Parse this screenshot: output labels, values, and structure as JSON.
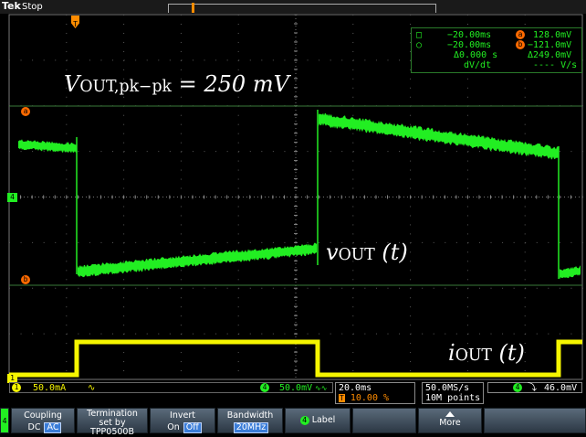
{
  "header": {
    "brand": "Tek",
    "run_state": "Stop"
  },
  "cursors": {
    "t1": "−20.00ms",
    "t2": "−20.00ms",
    "dt": "Δ0.000 s",
    "dvdt": "dV/dt",
    "v1": "128.0mV",
    "v2": "−121.0mV",
    "dv": "Δ249.0mV",
    "dvdt_val": "---- V/s",
    "cursor_a": "a",
    "cursor_b": "b"
  },
  "annotations": {
    "vpp_v": "V",
    "vpp_sub": "OUT,pk−pk",
    "vpp_eq": " = 250 mV",
    "vout_v": "v",
    "vout_sub": "OUT",
    "vout_t": " (t)",
    "iout_i": "i",
    "iout_sub": "OUT",
    "iout_t": " (t)"
  },
  "channels": {
    "ch1": {
      "num": "1",
      "scale": "50.0mA",
      "coupling_sym": "∿",
      "color": "#f5f500"
    },
    "ch4": {
      "num": "4",
      "scale": "50.0mV",
      "coupling_sym": "∿∿",
      "color": "#22ee22"
    }
  },
  "markers": {
    "ch1": "1",
    "ch4": "4",
    "trigger": "T"
  },
  "timebase": {
    "scale": "20.0ms",
    "position": "10.00 %",
    "t_icon": "T"
  },
  "acquisition": {
    "rate": "50.0MS/s",
    "points": "10M points"
  },
  "trigger": {
    "source": "4",
    "slope": "⤵",
    "level": "46.0mV"
  },
  "menu": {
    "ch_tab": "4",
    "coupling_label": "Coupling",
    "coupling_dc": "DC",
    "coupling_ac": "AC",
    "term_label": "Termination",
    "term_line2": "set by",
    "term_line3": "TPP0500B",
    "invert_label": "Invert",
    "invert_on": "On",
    "invert_off": "Off",
    "bw_label": "Bandwidth",
    "bw_value": "20MHz",
    "label_btn": "Label",
    "label_num": "4",
    "more": "More"
  },
  "colors": {
    "green": "#22ee22",
    "yellow": "#f5f500",
    "orange": "#ff6a00",
    "grid": "#5a5a5a"
  }
}
